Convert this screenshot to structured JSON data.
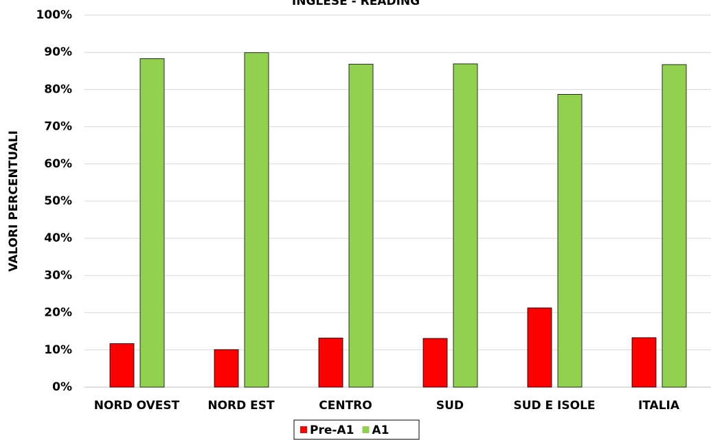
{
  "chart_data": {
    "type": "bar",
    "title": "INGLESE - READING",
    "y_label": "VALORI PERCENTUALI",
    "categories": [
      "NORD OVEST",
      "NORD EST",
      "CENTRO",
      "SUD",
      "SUD E ISOLE",
      "ITALIA"
    ],
    "series": [
      {
        "name": "Pre-A1",
        "color": "#ff0000",
        "values": [
          11.7,
          10.1,
          13.2,
          13.1,
          21.3,
          13.3
        ]
      },
      {
        "name": "A1",
        "color": "#92d050",
        "values": [
          88.3,
          89.9,
          86.8,
          86.9,
          78.7,
          86.7
        ]
      }
    ],
    "ylim": [
      0,
      100
    ],
    "yticks": [
      {
        "value": 0,
        "label": "0%"
      },
      {
        "value": 10,
        "label": "10%"
      },
      {
        "value": 20,
        "label": "20%"
      },
      {
        "value": 30,
        "label": "30%"
      },
      {
        "value": 40,
        "label": "40%"
      },
      {
        "value": 50,
        "label": "50%"
      },
      {
        "value": 60,
        "label": "60%"
      },
      {
        "value": 70,
        "label": "70%"
      },
      {
        "value": 80,
        "label": "80%"
      },
      {
        "value": 90,
        "label": "90%"
      },
      {
        "value": 100,
        "label": "100%"
      }
    ],
    "grid": true,
    "legend": "bottom"
  }
}
